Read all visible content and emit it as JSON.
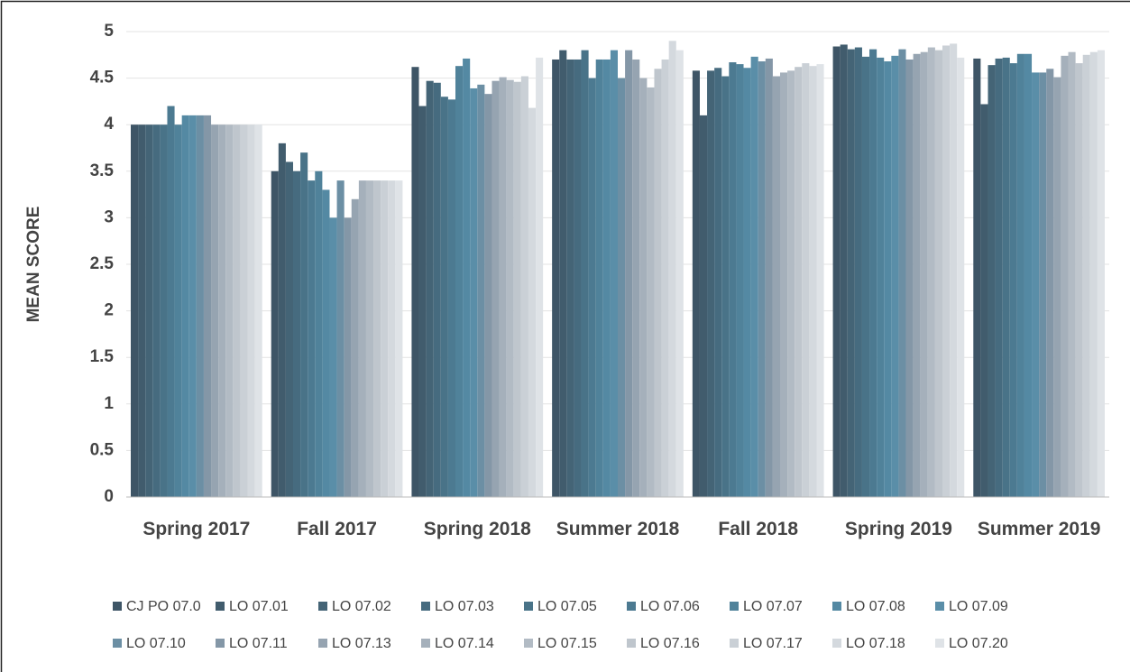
{
  "chart_data": {
    "type": "bar",
    "y_label": "MEAN SCORE",
    "categories": [
      "Spring 2017",
      "Fall 2017",
      "Spring 2018",
      "Summer 2018",
      "Fall 2018",
      "Spring 2019",
      "Summer 2019"
    ],
    "ylim": [
      0,
      5
    ],
    "yticks": [
      0,
      0.5,
      1,
      1.5,
      2,
      2.5,
      3,
      3.5,
      4,
      4.5,
      5
    ],
    "grid": true,
    "series": [
      {
        "name": "CJ PO 07.0",
        "color": "#3e5566",
        "values": [
          4,
          3.5,
          4.62,
          4.7,
          4.58,
          4.84,
          4.71
        ]
      },
      {
        "name": "LO 07.01",
        "color": "#415c6d",
        "values": [
          4,
          3.8,
          4.2,
          4.8,
          4.1,
          4.86,
          4.22
        ]
      },
      {
        "name": "LO 07.02",
        "color": "#446476",
        "values": [
          4,
          3.6,
          4.47,
          4.7,
          4.58,
          4.81,
          4.64
        ]
      },
      {
        "name": "LO 07.03",
        "color": "#466b7f",
        "values": [
          4,
          3.5,
          4.45,
          4.7,
          4.61,
          4.83,
          4.71
        ]
      },
      {
        "name": "LO 07.05",
        "color": "#497388",
        "values": [
          4,
          3.7,
          4.3,
          4.8,
          4.52,
          4.73,
          4.72
        ]
      },
      {
        "name": "LO 07.06",
        "color": "#4c7a91",
        "values": [
          4.2,
          3.4,
          4.27,
          4.5,
          4.67,
          4.81,
          4.66
        ]
      },
      {
        "name": "LO 07.07",
        "color": "#50829a",
        "values": [
          4,
          3.5,
          4.63,
          4.7,
          4.65,
          4.72,
          4.76
        ]
      },
      {
        "name": "LO 07.08",
        "color": "#5489a3",
        "values": [
          4.1,
          3.3,
          4.71,
          4.7,
          4.61,
          4.68,
          4.76
        ]
      },
      {
        "name": "LO 07.09",
        "color": "#5a8ea8",
        "values": [
          4.1,
          3.0,
          4.39,
          4.8,
          4.73,
          4.74,
          4.56
        ]
      },
      {
        "name": "LO 07.10",
        "color": "#6c8fa4",
        "values": [
          4.1,
          3.4,
          4.43,
          4.5,
          4.68,
          4.81,
          4.56
        ]
      },
      {
        "name": "LO 07.11",
        "color": "#8497a7",
        "values": [
          4.1,
          3.0,
          4.33,
          4.8,
          4.71,
          4.7,
          4.6
        ]
      },
      {
        "name": "LO 07.13",
        "color": "#96a4b1",
        "values": [
          4,
          3.2,
          4.47,
          4.7,
          4.52,
          4.76,
          4.51
        ]
      },
      {
        "name": "LO 07.14",
        "color": "#a5b0bb",
        "values": [
          4,
          3.4,
          4.51,
          4.5,
          4.56,
          4.78,
          4.74
        ]
      },
      {
        "name": "LO 07.15",
        "color": "#b2bbc4",
        "values": [
          4,
          3.4,
          4.48,
          4.4,
          4.58,
          4.83,
          4.78
        ]
      },
      {
        "name": "LO 07.16",
        "color": "#bfc6cd",
        "values": [
          4,
          3.4,
          4.46,
          4.6,
          4.62,
          4.8,
          4.66
        ]
      },
      {
        "name": "LO 07.17",
        "color": "#cad0d6",
        "values": [
          4,
          3.4,
          4.52,
          4.7,
          4.66,
          4.85,
          4.75
        ]
      },
      {
        "name": "LO 07.18",
        "color": "#d4d9de",
        "values": [
          4,
          3.4,
          4.18,
          4.9,
          4.63,
          4.87,
          4.78
        ]
      },
      {
        "name": "LO 07.20",
        "color": "#dfe3e7",
        "values": [
          4,
          3.4,
          4.72,
          4.8,
          4.65,
          4.72,
          4.8
        ]
      }
    ]
  }
}
